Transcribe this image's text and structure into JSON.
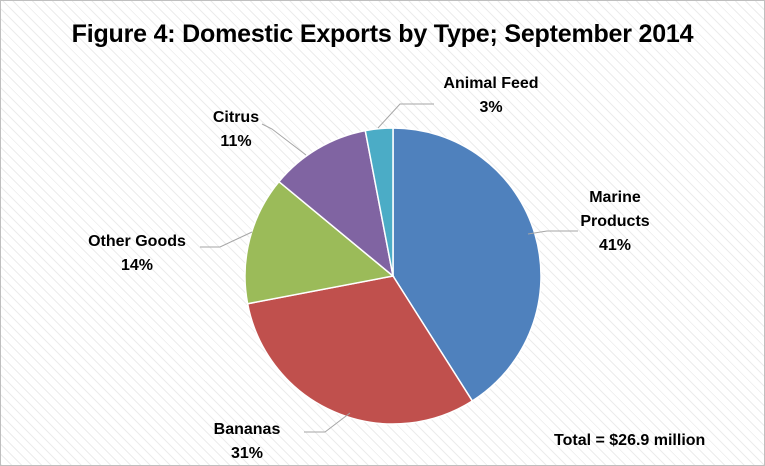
{
  "chart_data": {
    "type": "pie",
    "title": "Figure 4: Domestic Exports by Type; September 2014",
    "slices": [
      {
        "name": "Marine Products",
        "label_lines": [
          "Marine",
          "Products"
        ],
        "value": 41,
        "value_label": "41%",
        "color": "#4f81bd"
      },
      {
        "name": "Bananas",
        "label_lines": [
          "Bananas"
        ],
        "value": 31,
        "value_label": "31%",
        "color": "#c0504d"
      },
      {
        "name": "Other Goods",
        "label_lines": [
          "Other Goods"
        ],
        "value": 14,
        "value_label": "14%",
        "color": "#9bbb59"
      },
      {
        "name": "Citrus",
        "label_lines": [
          "Citrus"
        ],
        "value": 11,
        "value_label": "11%",
        "color": "#8064a2"
      },
      {
        "name": "Animal Feed",
        "label_lines": [
          "Animal Feed"
        ],
        "value": 3,
        "value_label": "3%",
        "color": "#4bacc6"
      }
    ],
    "annotation": "Total = $26.9 million"
  }
}
